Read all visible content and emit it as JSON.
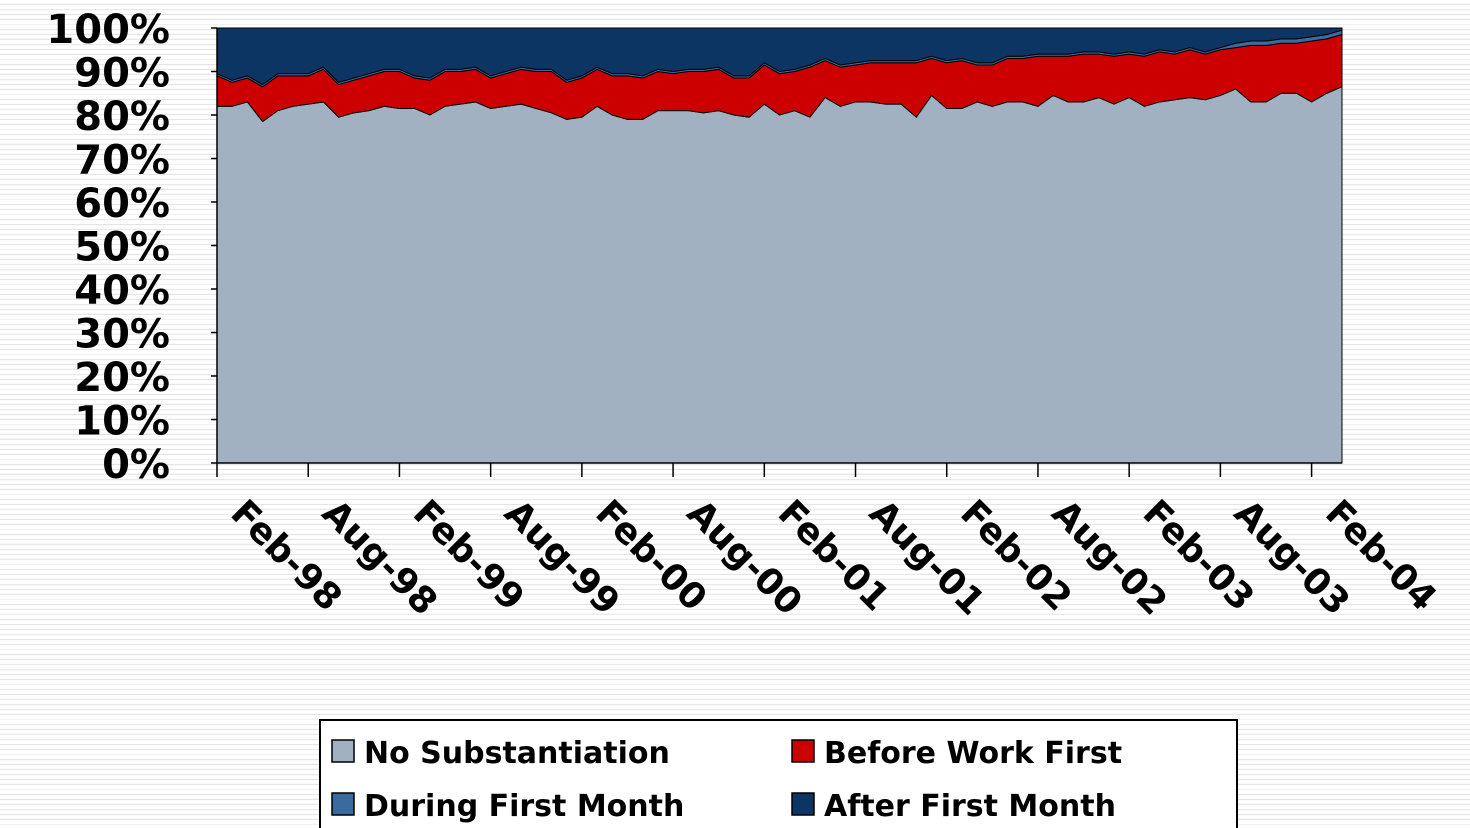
{
  "chart_data": {
    "type": "stacked_area_100",
    "categories": [
      "Feb-98",
      null,
      null,
      null,
      null,
      null,
      "Aug-98",
      null,
      null,
      null,
      null,
      null,
      "Feb-99",
      null,
      null,
      null,
      null,
      null,
      "Aug-99",
      null,
      null,
      null,
      null,
      null,
      "Feb-00",
      null,
      null,
      null,
      null,
      null,
      "Aug-00",
      null,
      null,
      null,
      null,
      null,
      "Feb-01",
      null,
      null,
      null,
      null,
      null,
      "Aug-01",
      null,
      null,
      null,
      null,
      null,
      "Feb-02",
      null,
      null,
      null,
      null,
      null,
      "Aug-02",
      null,
      null,
      null,
      null,
      null,
      "Feb-03",
      null,
      null,
      null,
      null,
      null,
      "Aug-03",
      null,
      null,
      null,
      null,
      null,
      "Feb-04",
      null,
      null
    ],
    "series": [
      {
        "name": "No Substantiation",
        "color": "#a2b1c1",
        "values": [
          82,
          82,
          83,
          78.5,
          81,
          82,
          82.5,
          83,
          79.5,
          80.5,
          81,
          82,
          81.5,
          81.5,
          80,
          82,
          82.5,
          83,
          81.5,
          82,
          82.5,
          81.5,
          80.5,
          79,
          79.5,
          82,
          80,
          79,
          79,
          81,
          81,
          81,
          80.5,
          81,
          80,
          79.5,
          82.5,
          80,
          81,
          79.5,
          84,
          82,
          83,
          83,
          82.5,
          82.5,
          79.5,
          84.5,
          81.5,
          81.5,
          83,
          82,
          83,
          83,
          82,
          84.5,
          83,
          83,
          84,
          82.5,
          84,
          82,
          83,
          83.5,
          84,
          83.5,
          84.5,
          86,
          83,
          83,
          85,
          85,
          83,
          85,
          86.5
        ]
      },
      {
        "name": "Before Work First",
        "color": "#cc0000",
        "values": [
          7,
          5.5,
          5.5,
          8,
          8,
          7,
          6.5,
          7.5,
          7.5,
          7.5,
          8,
          8,
          8.5,
          7,
          8,
          8,
          7.5,
          7.5,
          7,
          7.5,
          8,
          8.5,
          9.5,
          8.5,
          9,
          8.5,
          9,
          10,
          9.5,
          9,
          8.5,
          9,
          9.5,
          9.5,
          8.5,
          9,
          9,
          9.5,
          9,
          11.5,
          8.5,
          9,
          8.5,
          9,
          9.5,
          9.5,
          12.5,
          8.5,
          10.5,
          11,
          8.5,
          9.5,
          10,
          10,
          11.5,
          9,
          10.5,
          11,
          10,
          11,
          10,
          11.5,
          11.5,
          10.5,
          11,
          10.5,
          10.5,
          9.5,
          13,
          13,
          11.5,
          11.5,
          14,
          12.5,
          12
        ]
      },
      {
        "name": "During First Month",
        "color": "#3b6a9f",
        "values": [
          0.5,
          0.5,
          0.5,
          0.5,
          0.5,
          0.5,
          0.5,
          0.5,
          0.5,
          0.5,
          0.5,
          0.5,
          0.5,
          0.5,
          0.5,
          0.5,
          0.5,
          0.5,
          0.5,
          0.5,
          0.5,
          0.5,
          0.5,
          0.5,
          0.5,
          0.5,
          0.5,
          0.5,
          0.5,
          0.5,
          0.5,
          0.5,
          0.5,
          0.5,
          0.5,
          0.5,
          0.5,
          0.5,
          0.5,
          0.5,
          0.5,
          0.5,
          0.5,
          0.5,
          0.5,
          0.5,
          0.5,
          0.5,
          0.5,
          0.5,
          0.5,
          0.5,
          0.5,
          0.5,
          0.5,
          0.5,
          0.5,
          0.5,
          0.5,
          0.5,
          0.5,
          0.5,
          0.5,
          0.5,
          0.5,
          0.5,
          0.5,
          1,
          1,
          1,
          1,
          1,
          1,
          1,
          1
        ]
      },
      {
        "name": "After First Month",
        "color": "#0d3563",
        "values": [
          10.5,
          12,
          11,
          13,
          10.5,
          10.5,
          10.5,
          9,
          12.5,
          11.5,
          10.5,
          9.5,
          9.5,
          11,
          11.5,
          9.5,
          9.5,
          9,
          11,
          10,
          9,
          9.5,
          9.5,
          12,
          11,
          9,
          10.5,
          10.5,
          11,
          9.5,
          10,
          9.5,
          9.5,
          9,
          11,
          11,
          8,
          10,
          9.5,
          8.5,
          7,
          8.5,
          8,
          7.5,
          7.5,
          7.5,
          7.5,
          6.5,
          7.5,
          7,
          8,
          8,
          6.5,
          6.5,
          6,
          6,
          6,
          5.5,
          5.5,
          6,
          5.5,
          6,
          5,
          5.5,
          4.5,
          5.5,
          4.5,
          3.5,
          3,
          3,
          2.5,
          2.5,
          2,
          1.5,
          0.5
        ]
      }
    ],
    "ylim": [
      0,
      100
    ],
    "yticks": [
      {
        "value": 0,
        "label": "0%"
      },
      {
        "value": 10,
        "label": "10%"
      },
      {
        "value": 20,
        "label": "20%"
      },
      {
        "value": 30,
        "label": "30%"
      },
      {
        "value": 40,
        "label": "40%"
      },
      {
        "value": 50,
        "label": "50%"
      },
      {
        "value": 60,
        "label": "60%"
      },
      {
        "value": 70,
        "label": "70%"
      },
      {
        "value": 80,
        "label": "80%"
      },
      {
        "value": 90,
        "label": "90%"
      },
      {
        "value": 100,
        "label": "100%"
      }
    ],
    "legend": "bottom"
  }
}
